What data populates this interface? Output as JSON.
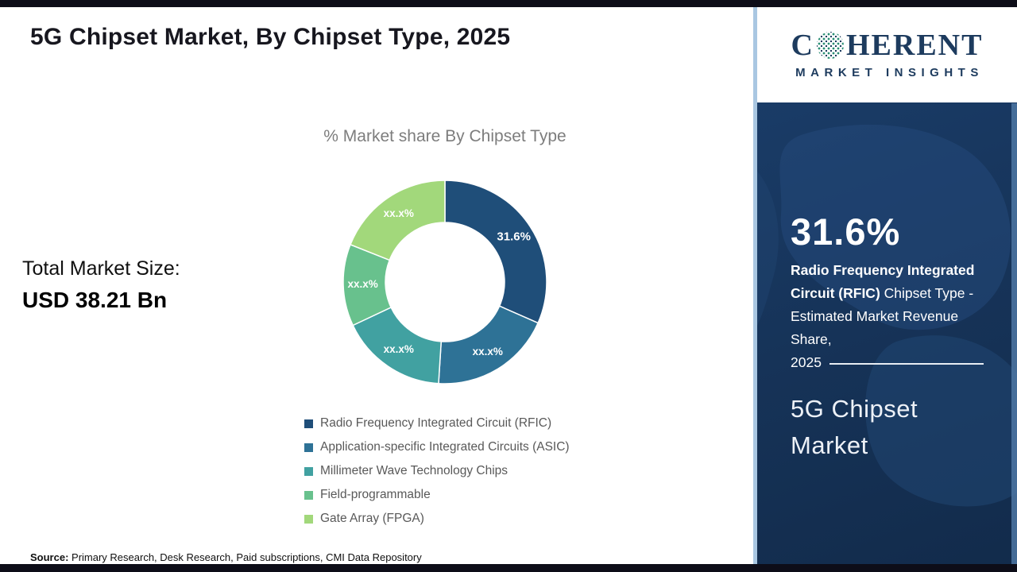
{
  "header": {
    "title": "5G Chipset Market, By Chipset Type, 2025"
  },
  "market_size": {
    "label": "Total Market Size:",
    "value": "USD 38.21 Bn"
  },
  "source": {
    "label": "Source:",
    "text": " Primary Research, Desk Research, Paid subscriptions, CMI Data Repository"
  },
  "side_panel": {
    "stat_value": "31.6%",
    "stat_bold": "Radio Frequency Integrated Circuit (RFIC)",
    "stat_rest": "Chipset Type - Estimated Market Revenue Share,",
    "stat_year": "2025",
    "product": "5G Chipset Market",
    "logo": {
      "brand_c": "C",
      "brand_rest": "HERENT",
      "subtitle": "MARKET INSIGHTS"
    }
  },
  "chart_data": {
    "type": "pie",
    "donut": true,
    "title": "% Market share By Chipset Type",
    "legend_position": "bottom",
    "segments": [
      {
        "label": "Radio Frequency Integrated Circuit (RFIC)",
        "display": "31.6%",
        "value": 31.6,
        "color": "#1f4e79"
      },
      {
        "label": "Application-specific Integrated Circuits (ASIC)",
        "display": "xx.x%",
        "value": 19.4,
        "color": "#2e7296"
      },
      {
        "label": "Millimeter Wave Technology Chips",
        "display": "xx.x%",
        "value": 17.0,
        "color": "#41a1a1"
      },
      {
        "label": "Field-programmable",
        "display": "xx.x%",
        "value": 13.0,
        "color": "#68c18d"
      },
      {
        "label": "Gate Array (FPGA)",
        "display": "xx.x%",
        "value": 19.0,
        "color": "#a2d87b"
      }
    ]
  }
}
